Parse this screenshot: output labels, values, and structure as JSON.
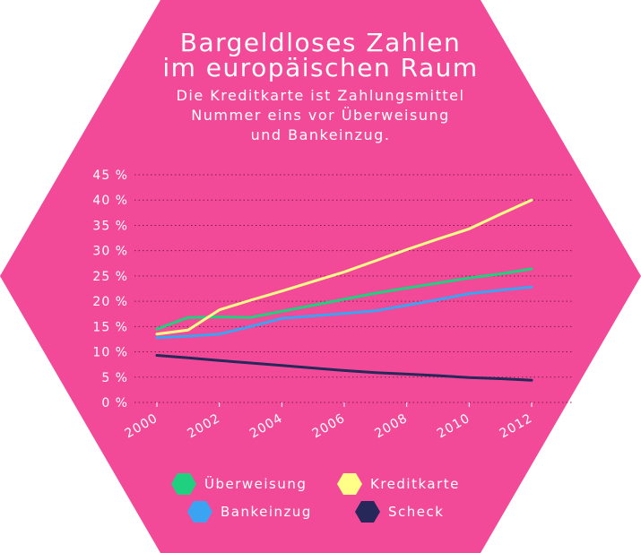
{
  "title": {
    "line1": "Bargeldloses Zahlen",
    "line2": "im europäischen Raum",
    "sub1": "Die Kreditkarte ist Zahlungsmittel",
    "sub2": "Nummer eins vor Überweisung",
    "sub3": "und Bankeinzug."
  },
  "colors": {
    "background": "#f24a98",
    "grid": "#7a1f4a",
    "text": "#ffffff"
  },
  "chart_data": {
    "type": "line",
    "x": [
      2000,
      2001,
      2002,
      2003,
      2004,
      2005,
      2006,
      2007,
      2008,
      2009,
      2010,
      2011,
      2012
    ],
    "x_tick_labels": [
      "2000",
      "2002",
      "2004",
      "2006",
      "2008",
      "2010",
      "2012"
    ],
    "y_tick_labels": [
      "0 %",
      "5 %",
      "10 %",
      "15 %",
      "20 %",
      "25 %",
      "30 %",
      "35 %",
      "40 %",
      "45 %"
    ],
    "ylim": [
      0,
      45
    ],
    "grid": "horizontal dotted",
    "legend_position": "bottom",
    "series": [
      {
        "name": "Überweisung",
        "color": "#1fd17e",
        "values": [
          14.5,
          16.8,
          16.9,
          16.8,
          18.0,
          19.2,
          20.4,
          21.6,
          22.6,
          23.6,
          24.6,
          25.4,
          26.4
        ]
      },
      {
        "name": "Kreditkarte",
        "color": "#ffff88",
        "values": [
          13.5,
          14.3,
          18.3,
          20.2,
          22.0,
          23.9,
          25.8,
          28.0,
          30.2,
          32.3,
          34.3,
          37.2,
          40.0
        ]
      },
      {
        "name": "Bankeinzug",
        "color": "#3aa4f2",
        "values": [
          12.8,
          13.1,
          13.5,
          15.0,
          16.6,
          17.1,
          17.6,
          18.1,
          19.2,
          20.3,
          21.5,
          22.2,
          22.8
        ]
      },
      {
        "name": "Scheck",
        "color": "#26285a",
        "values": [
          9.3,
          8.8,
          8.3,
          7.8,
          7.3,
          6.8,
          6.3,
          5.9,
          5.6,
          5.3,
          4.9,
          4.7,
          4.4
        ]
      }
    ]
  }
}
